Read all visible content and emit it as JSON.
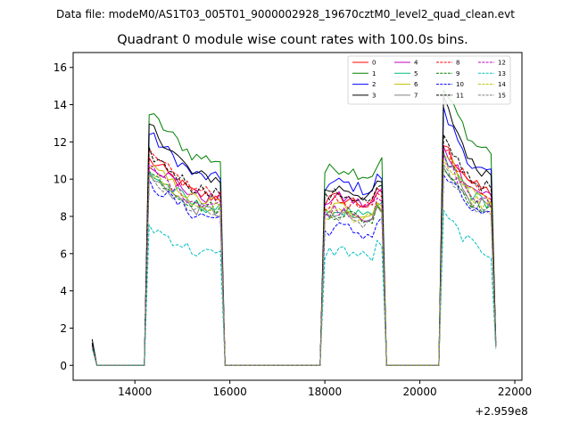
{
  "figure": {
    "suptitle": "Data file: modeM0/AS1T03_005T01_9000002928_19670cztM0_level2_quad_clean.evt"
  },
  "chart_data": {
    "type": "line",
    "title": "Quadrant 0 module wise count rates with 100.0s bins.",
    "xlabel": "",
    "ylabel": "",
    "x_offset_label": "+2.959e8",
    "xlim": [
      12700,
      22150
    ],
    "ylim": [
      -0.8,
      16.8
    ],
    "xticks": [
      14000,
      16000,
      18000,
      20000,
      22000
    ],
    "xtick_labels": [
      "14000",
      "16000",
      "18000",
      "20000",
      "22000"
    ],
    "yticks": [
      0,
      2,
      4,
      6,
      8,
      10,
      12,
      14,
      16
    ],
    "ytick_labels": [
      "0",
      "2",
      "4",
      "6",
      "8",
      "10",
      "12",
      "14",
      "16"
    ],
    "legend_location": "top-right",
    "legend_columns": 4,
    "segments": [
      {
        "start": 13100,
        "end": 13200,
        "fall_end": 13200
      },
      {
        "start": 14200,
        "end": 15800,
        "rise": 14300,
        "fall": 15900
      },
      {
        "start": 17900,
        "end": 19200,
        "rise": 18000,
        "fall": 19300
      },
      {
        "start": 20400,
        "end": 21500,
        "rise": 20500,
        "fall": 21600
      }
    ],
    "series": [
      {
        "name": "0",
        "color": "#ff0000",
        "dash": "solid",
        "level": [
          9.6,
          8.8,
          10.3
        ],
        "start": 1.0,
        "last": 1.0
      },
      {
        "name": "1",
        "color": "#008000",
        "dash": "solid",
        "level": [
          11.6,
          10.4,
          12.5
        ],
        "peak": [
          13.5,
          10.3,
          14.8
        ],
        "start": 1.2,
        "last": 1.2
      },
      {
        "name": "2",
        "color": "#0000ff",
        "dash": "solid",
        "level": [
          10.6,
          9.6,
          11.2
        ],
        "peak": [
          12.4,
          9.5,
          13.6
        ],
        "start": 1.1,
        "last": 1.1
      },
      {
        "name": "3",
        "color": "#000000",
        "dash": "solid",
        "level": [
          10.6,
          9.3,
          11.3
        ],
        "peak": [
          12.9,
          9.2,
          14.2
        ],
        "start": 1.4,
        "last": 1.4
      },
      {
        "name": "4",
        "color": "#bf00bf",
        "dash": "solid",
        "level": [
          9.5,
          8.8,
          10.1
        ],
        "start": 1.0,
        "last": 1.0
      },
      {
        "name": "5",
        "color": "#00bf80",
        "dash": "solid",
        "level": [
          9.0,
          8.1,
          9.7
        ],
        "start": 1.0,
        "last": 1.0
      },
      {
        "name": "6",
        "color": "#bfbf00",
        "dash": "solid",
        "level": [
          9.3,
          8.3,
          9.9
        ],
        "start": 1.0,
        "last": 1.0
      },
      {
        "name": "7",
        "color": "#808080",
        "dash": "solid",
        "level": [
          8.8,
          7.9,
          9.4
        ],
        "start": 1.0,
        "last": 1.0
      },
      {
        "name": "8",
        "color": "#ff0000",
        "dash": "dashed",
        "level": [
          9.8,
          8.6,
          10.2
        ],
        "start": 1.0,
        "last": 1.0
      },
      {
        "name": "9",
        "color": "#008000",
        "dash": "dashed",
        "level": [
          9.0,
          8.0,
          9.3
        ],
        "start": 1.0,
        "last": 1.0
      },
      {
        "name": "10",
        "color": "#0000ff",
        "dash": "dashed",
        "level": [
          8.5,
          7.2,
          8.9
        ],
        "start": 1.0,
        "last": 1.0
      },
      {
        "name": "11",
        "color": "#000000",
        "dash": "dashed",
        "level": [
          9.9,
          9.0,
          10.5
        ],
        "start": 1.2,
        "last": 1.2
      },
      {
        "name": "12",
        "color": "#bf00bf",
        "dash": "dashed",
        "level": [
          9.2,
          8.2,
          9.6
        ],
        "start": 1.0,
        "last": 1.0
      },
      {
        "name": "13",
        "color": "#00bfbf",
        "dash": "dashed",
        "level": [
          6.5,
          6.0,
          7.0
        ],
        "start": 0.9,
        "last": 0.9
      },
      {
        "name": "14",
        "color": "#bfbf00",
        "dash": "dashed",
        "level": [
          9.0,
          8.0,
          9.5
        ],
        "start": 1.0,
        "last": 1.0
      },
      {
        "name": "15",
        "color": "#808080",
        "dash": "dashed",
        "level": [
          8.7,
          7.8,
          9.2
        ],
        "start": 1.0,
        "last": 1.0
      }
    ]
  }
}
